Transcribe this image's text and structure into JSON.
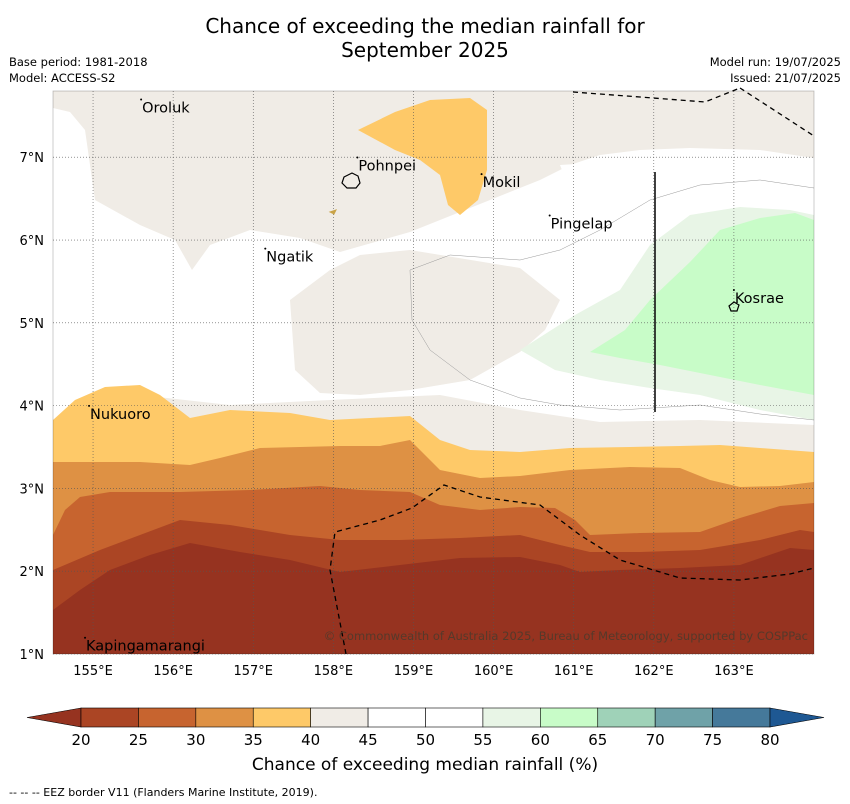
{
  "title_line1": "Chance of exceeding the median rainfall for",
  "title_line2": "September 2025",
  "base_period": "Base period: 1981-2018",
  "model": "Model: ACCESS-S2",
  "model_run": "Model run: 19/07/2025",
  "issued": "Issued: 21/07/2025",
  "copyright": "© Commonwealth of Australia 2025, Bureau of Meteorology, supported by COSPPac",
  "colorbar_label": "Chance of exceeding median rainfall (%)",
  "footer_note": "--  --  -- EEZ border V11 (Flanders Marine Institute, 2019).",
  "axes": {
    "lon_ticks": [
      "155°E",
      "156°E",
      "157°E",
      "158°E",
      "159°E",
      "160°E",
      "161°E",
      "162°E",
      "163°E"
    ],
    "lat_ticks": [
      "1°N",
      "2°N",
      "3°N",
      "4°N",
      "5°N",
      "6°N",
      "7°N"
    ],
    "lon_range": [
      154.5,
      164.0
    ],
    "lat_range": [
      1.0,
      7.8
    ]
  },
  "colorbar": {
    "ticks": [
      "20",
      "25",
      "30",
      "35",
      "40",
      "45",
      "50",
      "55",
      "60",
      "65",
      "70",
      "75",
      "80"
    ],
    "colors": [
      "#ab4524",
      "#c7642f",
      "#de9144",
      "#fec968",
      "#f0ece6",
      "#ffffff",
      "#ffffff",
      "#e8f5e6",
      "#c8fcc8",
      "#9fd2b8",
      "#6fa2a8",
      "#45799a"
    ],
    "under_color": "#963320",
    "over_color": "#1e5893"
  },
  "places": [
    {
      "name": "Oroluk",
      "lon": 155.6,
      "lat": 7.6
    },
    {
      "name": "Pohnpei",
      "lon": 158.3,
      "lat": 6.9
    },
    {
      "name": "Mokil",
      "lon": 159.85,
      "lat": 6.7
    },
    {
      "name": "Pingelap",
      "lon": 160.7,
      "lat": 6.2
    },
    {
      "name": "Ngatik",
      "lon": 157.15,
      "lat": 5.8
    },
    {
      "name": "Kosrae",
      "lon": 163.0,
      "lat": 5.3
    },
    {
      "name": "Nukuoro",
      "lon": 154.95,
      "lat": 3.9
    },
    {
      "name": "Kapingamarangi",
      "lon": 154.9,
      "lat": 1.1
    }
  ]
}
